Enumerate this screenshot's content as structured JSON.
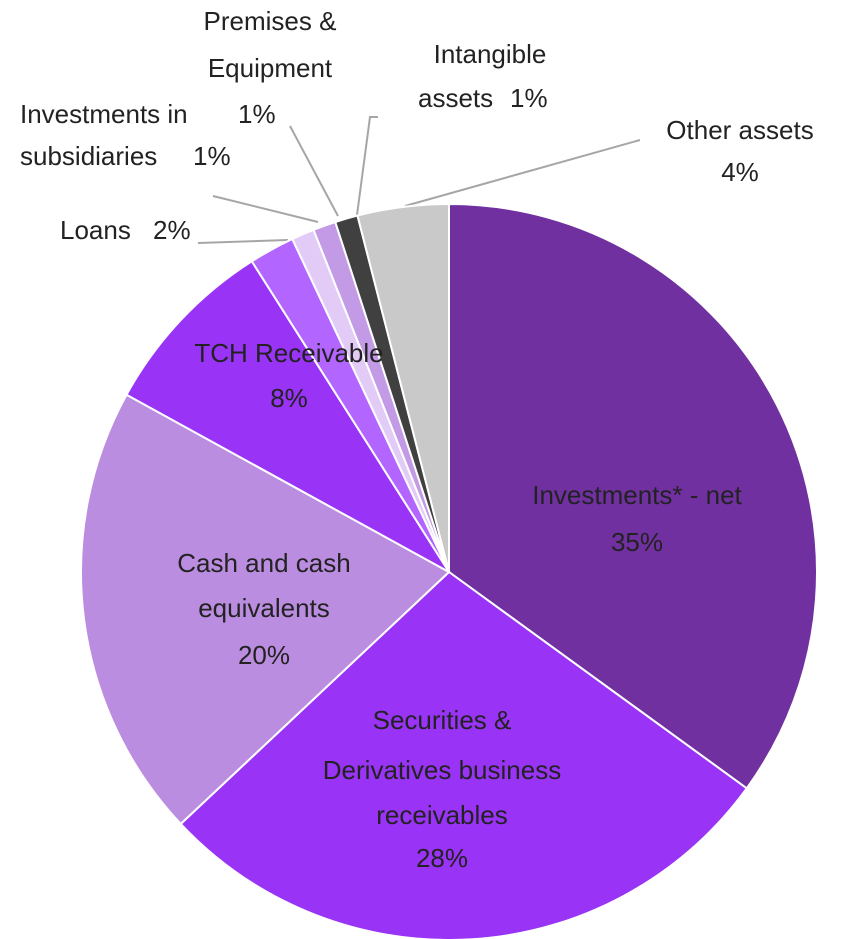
{
  "chart_data": {
    "type": "pie",
    "categories": [
      "Investments* - net",
      "Securities & Derivatives business receivables",
      "Cash and cash equivalents",
      "TCH Receivable",
      "Loans",
      "Investments in subsidiaries",
      "Premises & Equipment",
      "Intangible assets",
      "Other assets"
    ],
    "values": [
      35,
      28,
      20,
      8,
      2,
      1,
      1,
      1,
      4
    ],
    "value_labels": [
      "35%",
      "28%",
      "20%",
      "8%",
      "2%",
      "1%",
      "1%",
      "1%",
      "4%"
    ],
    "colors": [
      "#7030a0",
      "#9933f5",
      "#bb8de0",
      "#9933f5",
      "#b366ff",
      "#e2ccf7",
      "#c39ae6",
      "#404040",
      "#c9c9c9"
    ]
  }
}
